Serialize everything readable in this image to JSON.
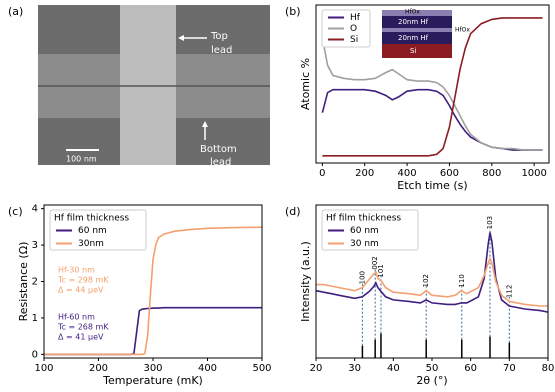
{
  "image_panel": {
    "panel_label": "(a)",
    "top_label": [
      "Top",
      "lead"
    ],
    "bottom_label": [
      "Bottom",
      "lead"
    ],
    "scale_bar": "100 nm"
  },
  "chart_data": [
    {
      "type": "line",
      "panel_label": "(b)",
      "xlabel": "Etch time (s)",
      "ylabel": "Atomic %",
      "xlim": [
        -30,
        1070
      ],
      "ylim": [
        -5,
        105
      ],
      "xticks": [
        0,
        200,
        400,
        600,
        800,
        1000
      ],
      "inset_labels": [
        "HfOx",
        "20nm Hf",
        "HfOx",
        "20nm Hf",
        "Si"
      ],
      "x": [
        0,
        25,
        50,
        100,
        150,
        200,
        250,
        300,
        330,
        360,
        400,
        450,
        500,
        540,
        570,
        600,
        625,
        650,
        675,
        700,
        750,
        800,
        850,
        900,
        950,
        1000,
        1040
      ],
      "series": [
        {
          "name": "Hf",
          "color": "#3f1f7f",
          "values": [
            30,
            44,
            46,
            46,
            46,
            46,
            45,
            42,
            39,
            41,
            45,
            46,
            46,
            45,
            42,
            35,
            28,
            22,
            17,
            13,
            9,
            6,
            5,
            4,
            4,
            4,
            4
          ]
        },
        {
          "name": "O",
          "color": "#a0a0a0",
          "values": [
            82,
            63,
            56,
            54,
            53,
            53,
            54,
            58,
            60,
            57,
            53,
            52,
            52,
            51,
            48,
            42,
            35,
            28,
            21,
            15,
            9,
            6,
            5,
            5,
            4,
            4,
            4
          ]
        },
        {
          "name": "Si",
          "color": "#8b1c24",
          "values": [
            0,
            0,
            0,
            0,
            0,
            0,
            0,
            0,
            0,
            0,
            0,
            0,
            0,
            1,
            5,
            20,
            40,
            60,
            75,
            85,
            92,
            95,
            96,
            96,
            96,
            96,
            96
          ]
        }
      ]
    },
    {
      "type": "line",
      "panel_label": "(c)",
      "xlabel": "Temperature (mK)",
      "ylabel": "Resistance (Ω)",
      "xlim": [
        100,
        500
      ],
      "ylim": [
        -0.1,
        4.1
      ],
      "xticks": [
        100,
        200,
        300,
        400,
        500
      ],
      "yticks": [
        0,
        1,
        2,
        3,
        4
      ],
      "legend_title": "Hf film thickness",
      "x": [
        100,
        200,
        250,
        260,
        265,
        270,
        275,
        280,
        285,
        290,
        295,
        300,
        305,
        310,
        320,
        340,
        370,
        400,
        450,
        500
      ],
      "series": [
        {
          "name": "60 nm",
          "color": "#3f1f7f",
          "values": [
            0,
            0,
            0,
            0,
            0.02,
            0.6,
            1.2,
            1.24,
            1.25,
            1.26,
            1.26,
            1.27,
            1.27,
            1.27,
            1.28,
            1.28,
            1.28,
            1.28,
            1.28,
            1.28
          ]
        },
        {
          "name": "30nm",
          "color": "#f5a070",
          "values": [
            0,
            0,
            0,
            0,
            0,
            0,
            0,
            0,
            0.02,
            0.5,
            1.6,
            2.6,
            3.0,
            3.2,
            3.3,
            3.38,
            3.43,
            3.46,
            3.48,
            3.49
          ]
        }
      ],
      "annotations": [
        {
          "lines": [
            "Hf-30 nm",
            "Tc = 298 mK",
            "Δ = 44 μeV"
          ],
          "color": "#f5a070"
        },
        {
          "lines": [
            "Hf-60 nm",
            "Tc = 268 mK",
            "Δ = 41 μeV"
          ],
          "color": "#3f1f7f"
        }
      ]
    },
    {
      "type": "line",
      "panel_label": "(d)",
      "xlabel": "2θ (°)",
      "ylabel": "Intensity (a.u.)",
      "xlim": [
        20,
        80
      ],
      "ylim": [
        0,
        100
      ],
      "xticks": [
        20,
        30,
        40,
        50,
        60,
        70,
        80
      ],
      "legend_title": "Hf film thickness",
      "x": [
        20,
        22,
        24,
        26,
        28,
        30,
        32,
        33,
        34,
        35,
        35.5,
        36,
        37,
        38,
        40,
        44,
        47,
        48.5,
        50,
        54,
        56,
        57.6,
        59,
        62,
        63.5,
        64.5,
        65,
        65.5,
        66.5,
        68,
        70,
        74,
        78,
        80
      ],
      "series": [
        {
          "name": "60 nm",
          "color": "#3f1f7f",
          "values": [
            44,
            43,
            42,
            41,
            40,
            39,
            40,
            42,
            44,
            47,
            49,
            46,
            43,
            40,
            38,
            37,
            36,
            38,
            36,
            35,
            35,
            36,
            36,
            40,
            52,
            74,
            82,
            76,
            52,
            38,
            34,
            32,
            31,
            30
          ]
        },
        {
          "name": "30 nm",
          "color": "#f5a070",
          "values": [
            48,
            48,
            47,
            46,
            45,
            44,
            46,
            49,
            52,
            55,
            56,
            52,
            50,
            46,
            43,
            42,
            41,
            44,
            41,
            40,
            41,
            44,
            42,
            46,
            54,
            62,
            65,
            62,
            50,
            41,
            37,
            35,
            34,
            34
          ]
        }
      ],
      "reference_peaks": {
        "x": [
          32.0,
          35.3,
          36.8,
          48.5,
          57.7,
          65.0,
          70.0
        ],
        "heights": [
          8,
          12,
          16,
          12,
          12,
          14,
          10
        ],
        "labels": [
          "100",
          "002",
          "101",
          "102",
          "110",
          "103",
          "112"
        ]
      }
    }
  ]
}
